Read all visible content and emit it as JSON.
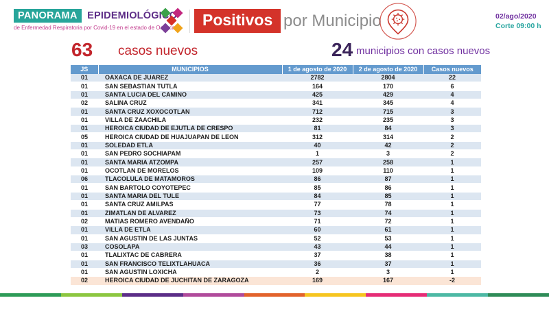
{
  "header": {
    "brand_panorama": "PANORAMA",
    "brand_epidemiologico": "EPIDEMIOLÓGICO",
    "brand_subtitle": "de Enfermedad Respiratoria por Covid-19 en el estado de Oaxaca",
    "title_badge": "Positivos",
    "title_rest": "por Municipio",
    "date": "02/ago/2020",
    "cutoff": "Corte 09:00 h"
  },
  "stats": {
    "new_cases_value": "63",
    "new_cases_label": "casos nuevos",
    "municipalities_value": "24",
    "municipalities_label": "municipios con casos nuevos"
  },
  "chart_data": {
    "type": "table",
    "title": "Positivos por Municipio",
    "columns": [
      "JS",
      "MUNICIPIOS",
      "1 de agosto de 2020",
      "2 de agosto de 2020",
      "Casos nuevos"
    ],
    "rows": [
      [
        "01",
        "OAXACA DE JUAREZ",
        2782,
        2804,
        22
      ],
      [
        "01",
        "SAN SEBASTIAN TUTLA",
        164,
        170,
        6
      ],
      [
        "01",
        "SANTA LUCIA DEL CAMINO",
        425,
        429,
        4
      ],
      [
        "02",
        "SALINA CRUZ",
        341,
        345,
        4
      ],
      [
        "01",
        "SANTA CRUZ XOXOCOTLAN",
        712,
        715,
        3
      ],
      [
        "01",
        "VILLA DE ZAACHILA",
        232,
        235,
        3
      ],
      [
        "01",
        "HEROICA CIUDAD DE EJUTLA DE CRESPO",
        81,
        84,
        3
      ],
      [
        "05",
        "HEROICA CIUDAD DE HUAJUAPAN DE LEON",
        312,
        314,
        2
      ],
      [
        "01",
        "SOLEDAD ETLA",
        40,
        42,
        2
      ],
      [
        "01",
        "SAN PEDRO SOCHIAPAM",
        1,
        3,
        2
      ],
      [
        "01",
        "SANTA MARIA ATZOMPA",
        257,
        258,
        1
      ],
      [
        "01",
        "OCOTLAN DE MORELOS",
        109,
        110,
        1
      ],
      [
        "06",
        "TLACOLULA DE MATAMOROS",
        86,
        87,
        1
      ],
      [
        "01",
        "SAN BARTOLO COYOTEPEC",
        85,
        86,
        1
      ],
      [
        "01",
        "SANTA MARIA DEL TULE",
        84,
        85,
        1
      ],
      [
        "01",
        "SANTA CRUZ AMILPAS",
        77,
        78,
        1
      ],
      [
        "01",
        "ZIMATLAN DE ALVAREZ",
        73,
        74,
        1
      ],
      [
        "02",
        "MATIAS ROMERO AVENDAÑO",
        71,
        72,
        1
      ],
      [
        "01",
        "VILLA DE ETLA",
        60,
        61,
        1
      ],
      [
        "01",
        "SAN AGUSTIN DE LAS JUNTAS",
        52,
        53,
        1
      ],
      [
        "03",
        "COSOLAPA",
        43,
        44,
        1
      ],
      [
        "01",
        "TLALIXTAC DE CABRERA",
        37,
        38,
        1
      ],
      [
        "01",
        "SAN FRANCISCO TELIXTLAHUACA",
        36,
        37,
        1
      ],
      [
        "01",
        "SAN AGUSTIN LOXICHA",
        2,
        3,
        1
      ],
      [
        "02",
        "HEROICA CIUDAD DE JUCHITAN DE ZARAGOZA",
        169,
        167,
        -2
      ]
    ],
    "highlighted_last_row": true
  },
  "colors": {
    "accent_red": "#d4332a",
    "stat_red": "#c2242b",
    "teal": "#27a59a",
    "brand_purple": "#5d2d87",
    "brand_magenta": "#c23a8c",
    "date_purple": "#7030a0",
    "dark_purple_stat": "#3a2359",
    "table_header_blue": "#639ace",
    "row_alt_blue": "#dce6f1",
    "highlight_row_peach": "#fbe5d6",
    "pin_red": "#cb3a31",
    "logo_diamonds": [
      "#3aa149",
      "#c2267e",
      "#d62e27",
      "#7c3f98",
      "#f0a31a"
    ],
    "footer_segments": [
      "#2d9b57",
      "#8cc63f",
      "#5b2d87",
      "#b04a9b",
      "#e2622b",
      "#f6c51f",
      "#e62c76",
      "#4cb8a4",
      "#2e8b57"
    ]
  }
}
